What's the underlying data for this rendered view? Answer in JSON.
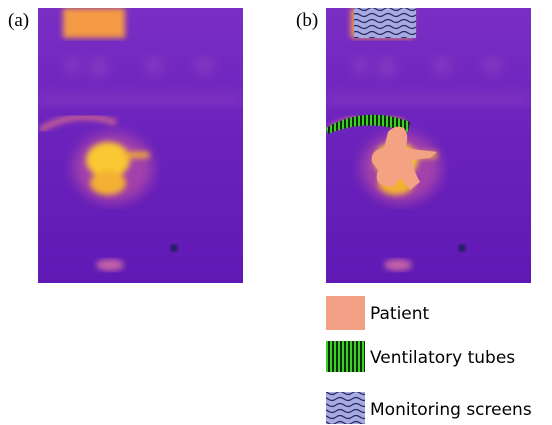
{
  "panels": [
    {
      "label": "(a)"
    },
    {
      "label": "(b)"
    }
  ],
  "legend": [
    {
      "label": "Patient"
    },
    {
      "label": "Ventilatory tubes"
    },
    {
      "label": "Monitoring screens"
    }
  ]
}
